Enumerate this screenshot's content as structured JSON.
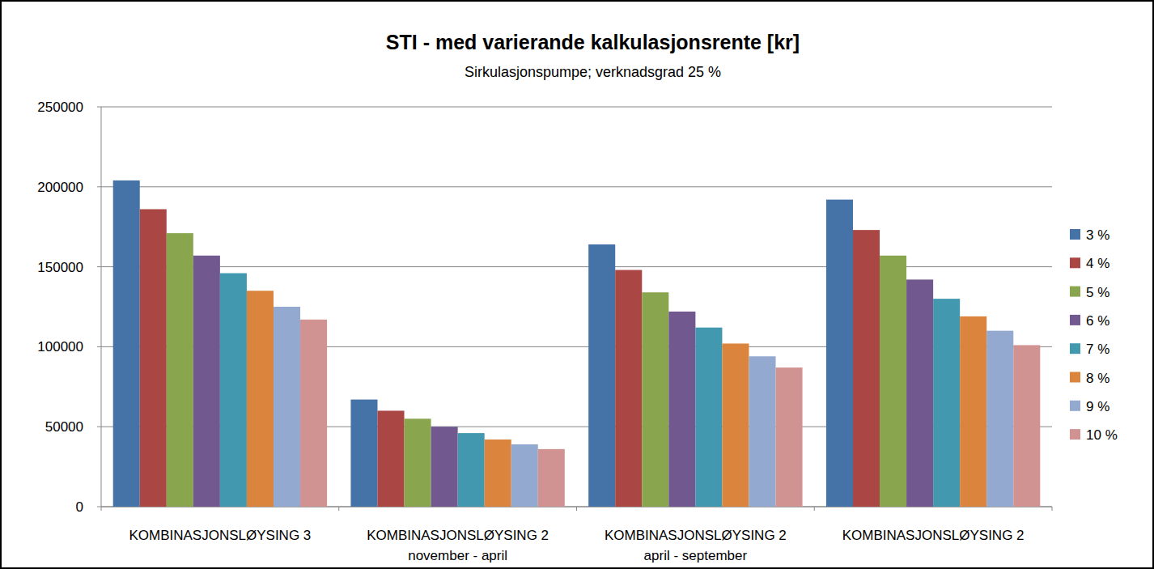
{
  "chart_data": {
    "type": "bar",
    "title": "STI - med varierande kalkulasjonsrente [kr]",
    "subtitle": "Sirkulasjonspumpe; verknadsgrad 25 %",
    "categories": [
      "KOMBINASJONSLØYSING 3",
      "KOMBINASJONSLØYSING 2\nnovember - april",
      "KOMBINASJONSLØYSING 2\napril - september",
      "KOMBINASJONSLØYSING 2"
    ],
    "series": [
      {
        "name": "3 %",
        "color": "#4572a7",
        "values": [
          204000,
          67000,
          164000,
          192000
        ]
      },
      {
        "name": "4 %",
        "color": "#aa4643",
        "values": [
          186000,
          60000,
          148000,
          173000
        ]
      },
      {
        "name": "5 %",
        "color": "#89a54e",
        "values": [
          171000,
          55000,
          134000,
          157000
        ]
      },
      {
        "name": "6 %",
        "color": "#71588f",
        "values": [
          157000,
          50000,
          122000,
          142000
        ]
      },
      {
        "name": "7 %",
        "color": "#4198af",
        "values": [
          146000,
          46000,
          112000,
          130000
        ]
      },
      {
        "name": "8 %",
        "color": "#db843d",
        "values": [
          135000,
          42000,
          102000,
          119000
        ]
      },
      {
        "name": "9 %",
        "color": "#93a9cf",
        "values": [
          125000,
          39000,
          94000,
          110000
        ]
      },
      {
        "name": "10 %",
        "color": "#d19392",
        "values": [
          117000,
          36000,
          87000,
          101000
        ]
      }
    ],
    "ylim": [
      0,
      250000
    ],
    "yticks": [
      0,
      50000,
      100000,
      150000,
      200000,
      250000
    ],
    "grid": true,
    "legend": "right"
  }
}
